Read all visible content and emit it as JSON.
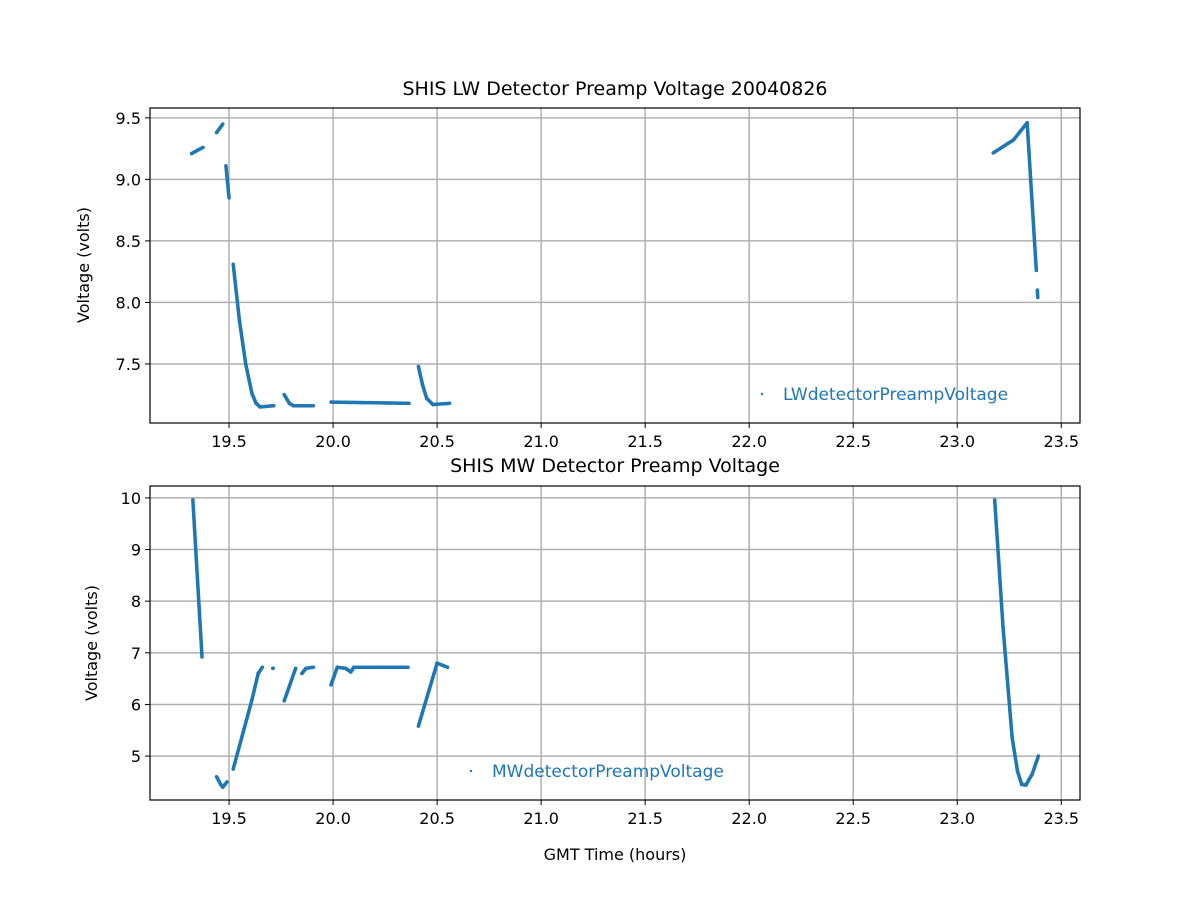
{
  "chart_data": [
    {
      "type": "scatter",
      "title": "SHIS LW Detector Preamp Voltage 20040826",
      "xlabel": "",
      "ylabel": "Voltage (volts)",
      "xlim": [
        19.12,
        23.59
      ],
      "ylim": [
        7.02,
        9.58
      ],
      "xticks": [
        "19.5",
        "20.0",
        "20.5",
        "21.0",
        "21.5",
        "22.0",
        "22.5",
        "23.0",
        "23.5"
      ],
      "yticks": [
        "7.5",
        "8.0",
        "8.5",
        "9.0",
        "9.5"
      ],
      "grid": true,
      "legend_placement": "lower-right",
      "color": "#1f77b4",
      "series": [
        {
          "name": "LWdetectorPreampVoltage",
          "segments": [
            [
              [
                19.32,
                9.21
              ],
              [
                19.375,
                9.26
              ]
            ],
            [
              [
                19.44,
                9.38
              ],
              [
                19.47,
                9.45
              ]
            ],
            [
              [
                19.485,
                9.11
              ],
              [
                19.5,
                8.85
              ]
            ],
            [
              [
                19.52,
                8.31
              ],
              [
                19.55,
                7.85
              ],
              [
                19.58,
                7.5
              ],
              [
                19.61,
                7.26
              ],
              [
                19.63,
                7.18
              ],
              [
                19.65,
                7.15
              ],
              [
                19.71,
                7.16
              ]
            ],
            [
              [
                19.71,
                7.16
              ],
              [
                19.715,
                7.16
              ]
            ],
            [
              [
                19.765,
                7.25
              ],
              [
                19.79,
                7.18
              ],
              [
                19.81,
                7.16
              ],
              [
                19.905,
                7.16
              ]
            ],
            [
              [
                19.99,
                7.19
              ],
              [
                20.365,
                7.18
              ]
            ],
            [
              [
                20.41,
                7.48
              ],
              [
                20.43,
                7.33
              ],
              [
                20.45,
                7.22
              ],
              [
                20.48,
                7.17
              ],
              [
                20.56,
                7.18
              ]
            ],
            [
              [
                23.173,
                9.215
              ],
              [
                23.27,
                9.32
              ],
              [
                23.336,
                9.46
              ],
              [
                23.38,
                8.26
              ]
            ],
            [
              [
                23.385,
                8.1
              ],
              [
                23.387,
                8.04
              ]
            ]
          ]
        }
      ]
    },
    {
      "type": "scatter",
      "title": "SHIS MW Detector Preamp Voltage",
      "xlabel": "GMT Time (hours)",
      "ylabel": "Voltage (volts)",
      "xlim": [
        19.12,
        23.59
      ],
      "ylim": [
        4.15,
        10.23
      ],
      "xticks": [
        "19.5",
        "20.0",
        "20.5",
        "21.0",
        "21.5",
        "22.0",
        "22.5",
        "23.0",
        "23.5"
      ],
      "yticks": [
        "5",
        "6",
        "7",
        "8",
        "9",
        "10"
      ],
      "grid": true,
      "legend_placement": "lower-center",
      "color": "#1f77b4",
      "series": [
        {
          "name": "MWdetectorPreampVoltage",
          "segments": [
            [
              [
                19.326,
                9.96
              ],
              [
                19.37,
                6.92
              ]
            ],
            [
              [
                19.44,
                4.6
              ],
              [
                19.46,
                4.45
              ],
              [
                19.47,
                4.4
              ],
              [
                19.49,
                4.5
              ]
            ],
            [
              [
                19.52,
                4.75
              ],
              [
                19.61,
                6.09
              ],
              [
                19.64,
                6.6
              ],
              [
                19.66,
                6.72
              ]
            ],
            [
              [
                19.71,
                6.7
              ],
              [
                19.712,
                6.7
              ]
            ],
            [
              [
                19.765,
                6.07
              ],
              [
                19.82,
                6.7
              ]
            ],
            [
              [
                19.85,
                6.6
              ],
              [
                19.87,
                6.7
              ],
              [
                19.905,
                6.72
              ]
            ],
            [
              [
                19.99,
                6.38
              ],
              [
                20.02,
                6.72
              ],
              [
                20.06,
                6.7
              ],
              [
                20.085,
                6.63
              ],
              [
                20.1,
                6.72
              ],
              [
                20.36,
                6.72
              ]
            ],
            [
              [
                20.41,
                5.58
              ],
              [
                20.5,
                6.8
              ],
              [
                20.55,
                6.72
              ]
            ],
            [
              [
                23.18,
                9.96
              ],
              [
                23.22,
                7.5
              ],
              [
                23.264,
                5.35
              ],
              [
                23.29,
                4.7
              ],
              [
                23.31,
                4.45
              ],
              [
                23.33,
                4.44
              ],
              [
                23.36,
                4.65
              ],
              [
                23.39,
                5.0
              ]
            ]
          ]
        }
      ]
    }
  ]
}
